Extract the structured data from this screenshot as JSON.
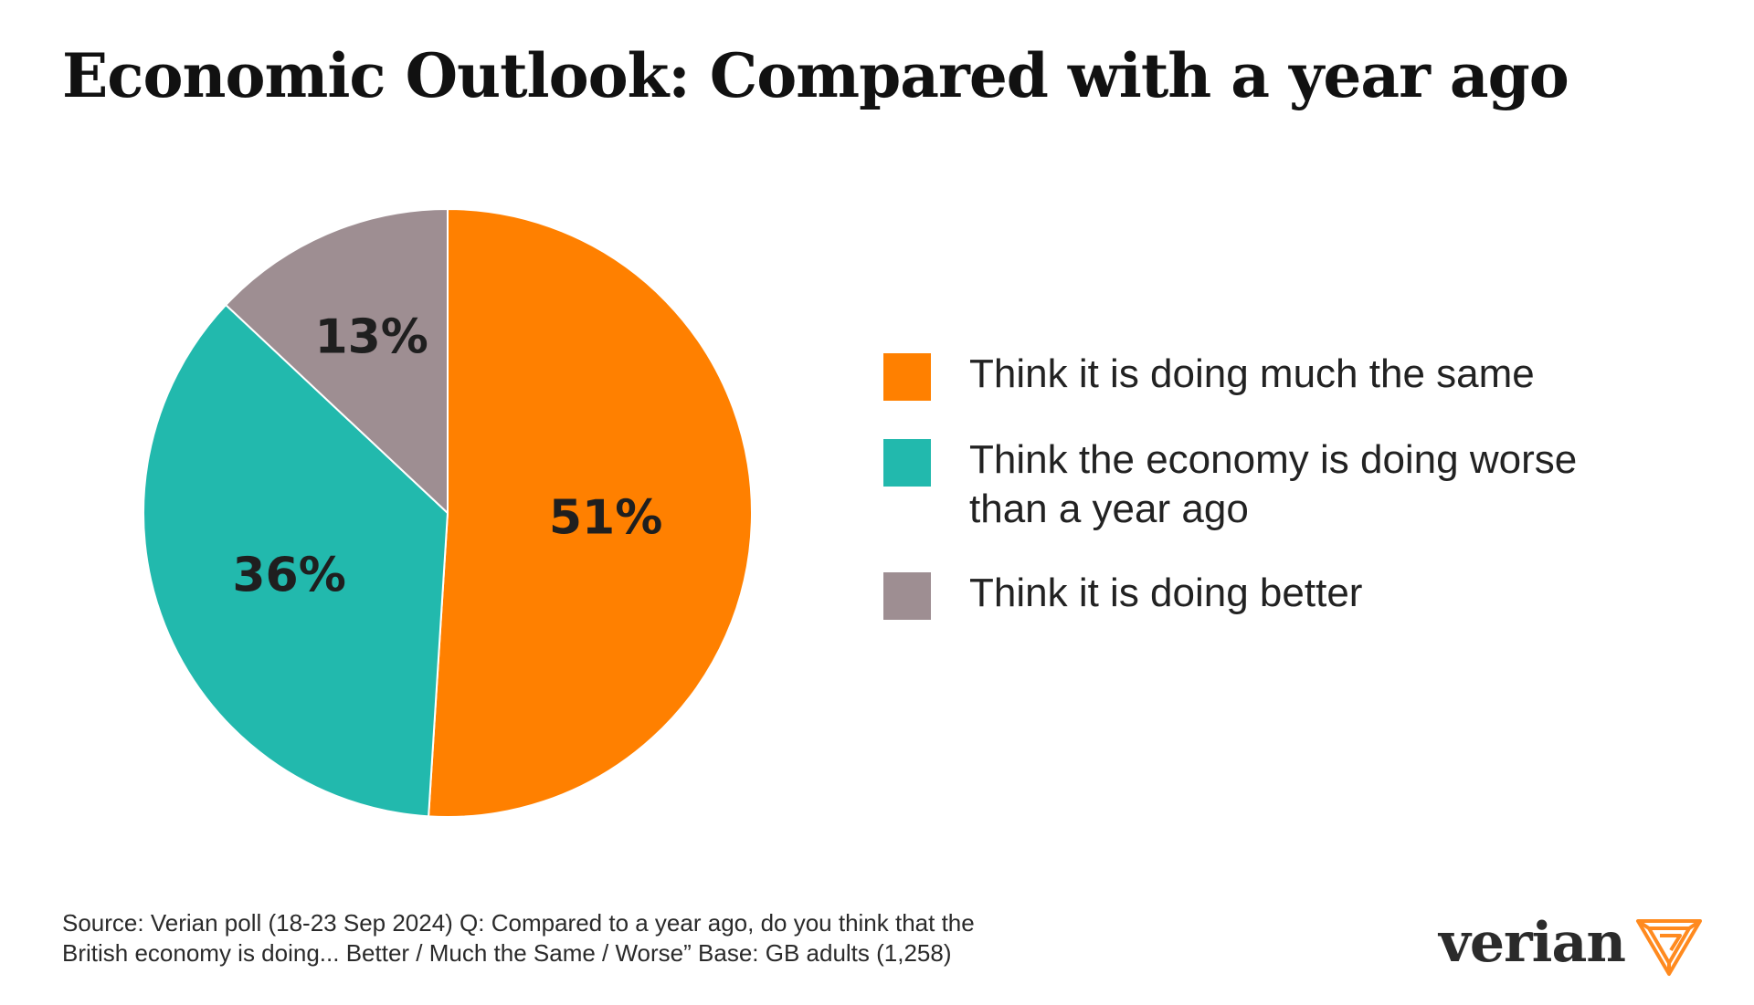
{
  "colors": {
    "orange": "#FF8000",
    "teal": "#22B9AD",
    "gray": "#9E8E92",
    "logo_accent": "#FF8A1F"
  },
  "chart_data": {
    "type": "pie",
    "title": "Economic Outlook: Compared with a year ago",
    "slices": [
      {
        "label": "Think it is doing much the same",
        "value": 51,
        "display": "51%",
        "color": "#FF8000"
      },
      {
        "label": "Think the economy is doing worse than a year ago",
        "value": 36,
        "display": "36%",
        "color": "#22B9AD"
      },
      {
        "label": "Think it is doing better",
        "value": 13,
        "display": "13%",
        "color": "#9E8E92"
      }
    ],
    "legend_position": "right"
  },
  "legend": {
    "items": [
      {
        "label": "Think it is doing much the same"
      },
      {
        "label": "Think the economy is doing worse than a year ago"
      },
      {
        "label": "Think it is doing better"
      }
    ]
  },
  "footer": {
    "source_line1": "Source: Verian poll (18-23 Sep 2024) Q: Compared to a year ago, do you think that the",
    "source_line2": "British economy is doing... Better / Much the Same / Worse” Base: GB adults (1,258)"
  },
  "logo": {
    "text": "verian",
    "mark_icon": "verian-triangle-icon"
  }
}
